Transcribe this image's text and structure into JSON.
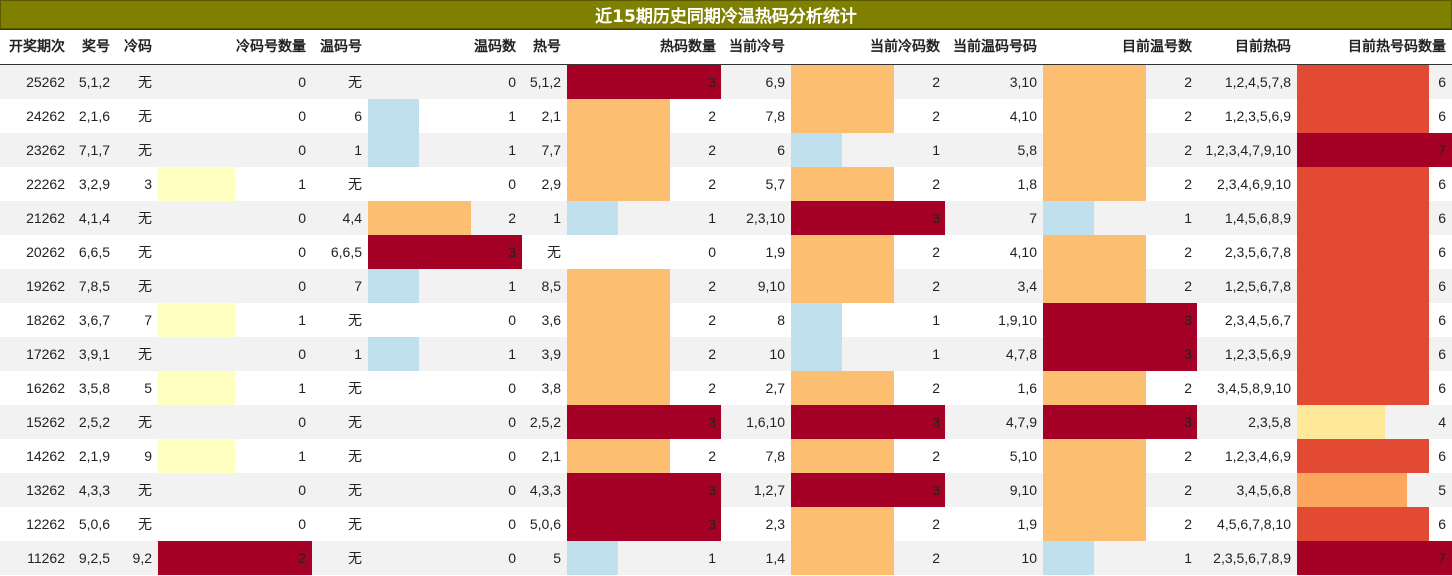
{
  "title": "近15期历史同期冷温热码分析统计",
  "headers": [
    "开奖期次",
    "奖号",
    "冷码",
    "冷码号数量",
    "温码号",
    "温码数",
    "热号",
    "热码数量",
    "当前冷号",
    "当前冷码数",
    "当前温码号码",
    "目前温号数",
    "目前热码",
    "目前热号码数量"
  ],
  "colors": {
    "title_bg": "#808000",
    "level1": "#bfe0ec",
    "level1_alt": "#ffffc0",
    "level2": "#fcbf72",
    "level3": "#a50026",
    "hot4": "#fee89a",
    "hot5": "#fca65e",
    "hot6": "#e34a33",
    "hot7": "#a50026"
  },
  "rows": [
    {
      "issue": "25262",
      "prize": "5,1,2",
      "cold": "无",
      "cold_count": 0,
      "warm": "无",
      "warm_count": 0,
      "hot": "5,1,2",
      "hot_count": 3,
      "cur_cold": "6,9",
      "cur_cold_count": 2,
      "cur_warm": "3,10",
      "cur_warm_count": 2,
      "cur_hot": "1,2,4,5,7,8",
      "cur_hot_count": 6
    },
    {
      "issue": "24262",
      "prize": "2,1,6",
      "cold": "无",
      "cold_count": 0,
      "warm": "6",
      "warm_count": 1,
      "hot": "2,1",
      "hot_count": 2,
      "cur_cold": "7,8",
      "cur_cold_count": 2,
      "cur_warm": "4,10",
      "cur_warm_count": 2,
      "cur_hot": "1,2,3,5,6,9",
      "cur_hot_count": 6
    },
    {
      "issue": "23262",
      "prize": "7,1,7",
      "cold": "无",
      "cold_count": 0,
      "warm": "1",
      "warm_count": 1,
      "hot": "7,7",
      "hot_count": 2,
      "cur_cold": "6",
      "cur_cold_count": 1,
      "cur_warm": "5,8",
      "cur_warm_count": 2,
      "cur_hot": "1,2,3,4,7,9,10",
      "cur_hot_count": 7
    },
    {
      "issue": "22262",
      "prize": "3,2,9",
      "cold": "3",
      "cold_count": 1,
      "warm": "无",
      "warm_count": 0,
      "hot": "2,9",
      "hot_count": 2,
      "cur_cold": "5,7",
      "cur_cold_count": 2,
      "cur_warm": "1,8",
      "cur_warm_count": 2,
      "cur_hot": "2,3,4,6,9,10",
      "cur_hot_count": 6
    },
    {
      "issue": "21262",
      "prize": "4,1,4",
      "cold": "无",
      "cold_count": 0,
      "warm": "4,4",
      "warm_count": 2,
      "hot": "1",
      "hot_count": 1,
      "cur_cold": "2,3,10",
      "cur_cold_count": 3,
      "cur_warm": "7",
      "cur_warm_count": 1,
      "cur_hot": "1,4,5,6,8,9",
      "cur_hot_count": 6
    },
    {
      "issue": "20262",
      "prize": "6,6,5",
      "cold": "无",
      "cold_count": 0,
      "warm": "6,6,5",
      "warm_count": 3,
      "hot": "无",
      "hot_count": 0,
      "cur_cold": "1,9",
      "cur_cold_count": 2,
      "cur_warm": "4,10",
      "cur_warm_count": 2,
      "cur_hot": "2,3,5,6,7,8",
      "cur_hot_count": 6
    },
    {
      "issue": "19262",
      "prize": "7,8,5",
      "cold": "无",
      "cold_count": 0,
      "warm": "7",
      "warm_count": 1,
      "hot": "8,5",
      "hot_count": 2,
      "cur_cold": "9,10",
      "cur_cold_count": 2,
      "cur_warm": "3,4",
      "cur_warm_count": 2,
      "cur_hot": "1,2,5,6,7,8",
      "cur_hot_count": 6
    },
    {
      "issue": "18262",
      "prize": "3,6,7",
      "cold": "7",
      "cold_count": 1,
      "warm": "无",
      "warm_count": 0,
      "hot": "3,6",
      "hot_count": 2,
      "cur_cold": "8",
      "cur_cold_count": 1,
      "cur_warm": "1,9,10",
      "cur_warm_count": 3,
      "cur_hot": "2,3,4,5,6,7",
      "cur_hot_count": 6
    },
    {
      "issue": "17262",
      "prize": "3,9,1",
      "cold": "无",
      "cold_count": 0,
      "warm": "1",
      "warm_count": 1,
      "hot": "3,9",
      "hot_count": 2,
      "cur_cold": "10",
      "cur_cold_count": 1,
      "cur_warm": "4,7,8",
      "cur_warm_count": 3,
      "cur_hot": "1,2,3,5,6,9",
      "cur_hot_count": 6
    },
    {
      "issue": "16262",
      "prize": "3,5,8",
      "cold": "5",
      "cold_count": 1,
      "warm": "无",
      "warm_count": 0,
      "hot": "3,8",
      "hot_count": 2,
      "cur_cold": "2,7",
      "cur_cold_count": 2,
      "cur_warm": "1,6",
      "cur_warm_count": 2,
      "cur_hot": "3,4,5,8,9,10",
      "cur_hot_count": 6
    },
    {
      "issue": "15262",
      "prize": "2,5,2",
      "cold": "无",
      "cold_count": 0,
      "warm": "无",
      "warm_count": 0,
      "hot": "2,5,2",
      "hot_count": 3,
      "cur_cold": "1,6,10",
      "cur_cold_count": 3,
      "cur_warm": "4,7,9",
      "cur_warm_count": 3,
      "cur_hot": "2,3,5,8",
      "cur_hot_count": 4
    },
    {
      "issue": "14262",
      "prize": "2,1,9",
      "cold": "9",
      "cold_count": 1,
      "warm": "无",
      "warm_count": 0,
      "hot": "2,1",
      "hot_count": 2,
      "cur_cold": "7,8",
      "cur_cold_count": 2,
      "cur_warm": "5,10",
      "cur_warm_count": 2,
      "cur_hot": "1,2,3,4,6,9",
      "cur_hot_count": 6
    },
    {
      "issue": "13262",
      "prize": "4,3,3",
      "cold": "无",
      "cold_count": 0,
      "warm": "无",
      "warm_count": 0,
      "hot": "4,3,3",
      "hot_count": 3,
      "cur_cold": "1,2,7",
      "cur_cold_count": 3,
      "cur_warm": "9,10",
      "cur_warm_count": 2,
      "cur_hot": "3,4,5,6,8",
      "cur_hot_count": 5
    },
    {
      "issue": "12262",
      "prize": "5,0,6",
      "cold": "无",
      "cold_count": 0,
      "warm": "无",
      "warm_count": 0,
      "hot": "5,0,6",
      "hot_count": 3,
      "cur_cold": "2,3",
      "cur_cold_count": 2,
      "cur_warm": "1,9",
      "cur_warm_count": 2,
      "cur_hot": "4,5,6,7,8,10",
      "cur_hot_count": 6
    },
    {
      "issue": "11262",
      "prize": "9,2,5",
      "cold": "9,2",
      "cold_count": 2,
      "warm": "无",
      "warm_count": 0,
      "hot": "5",
      "hot_count": 1,
      "cur_cold": "1,4",
      "cur_cold_count": 2,
      "cur_warm": "10",
      "cur_warm_count": 1,
      "cur_hot": "2,3,5,6,7,8,9",
      "cur_hot_count": 7
    }
  ]
}
